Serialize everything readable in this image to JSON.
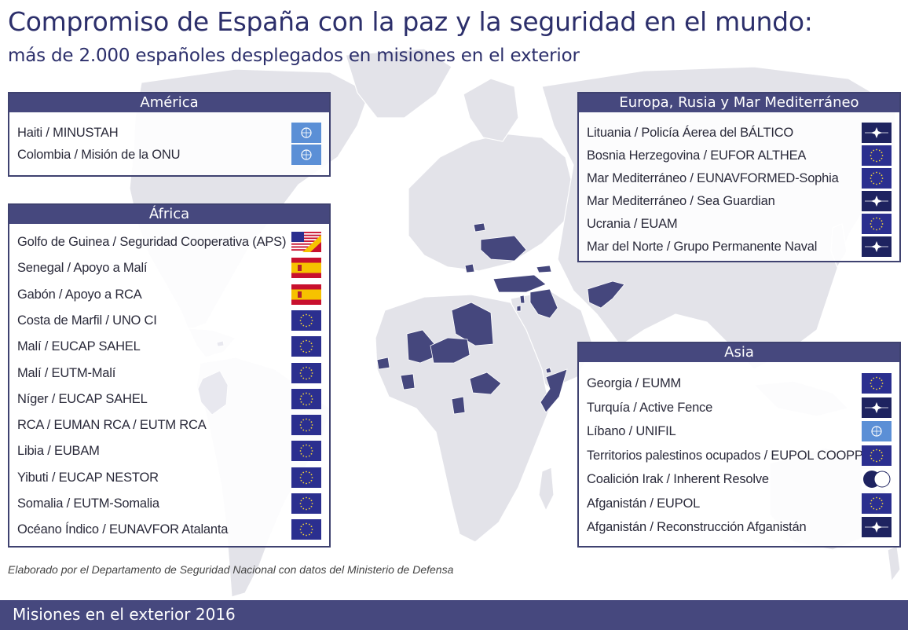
{
  "title": "Compromiso de España con la paz y la seguridad en el  mundo:",
  "subtitle": "más de 2.000 españoles desplegados en misiones en el exterior",
  "panels": {
    "america": {
      "heading": "América",
      "items": [
        {
          "label": "Haiti / MINUSTAH",
          "flag": "un"
        },
        {
          "label": "Colombia / Misión de la ONU",
          "flag": "un"
        }
      ]
    },
    "africa": {
      "heading": "África",
      "items": [
        {
          "label": "Golfo de Guinea / Seguridad Cooperativa (APS)",
          "flag": "us-es"
        },
        {
          "label": "Senegal / Apoyo a Malí",
          "flag": "es"
        },
        {
          "label": "Gabón / Apoyo a RCA",
          "flag": "es"
        },
        {
          "label": "Costa de Marfil / UNO CI",
          "flag": "eu"
        },
        {
          "label": "Malí / EUCAP SAHEL",
          "flag": "eu"
        },
        {
          "label": "Malí / EUTM-Malí",
          "flag": "eu"
        },
        {
          "label": "Níger / EUCAP SAHEL",
          "flag": "eu"
        },
        {
          "label": "RCA / EUMAN RCA / EUTM RCA",
          "flag": "eu"
        },
        {
          "label": "Libia / EUBAM",
          "flag": "eu"
        },
        {
          "label": "Yibuti / EUCAP  NESTOR",
          "flag": "eu"
        },
        {
          "label": "Somalia / EUTM-Somalia",
          "flag": "eu"
        },
        {
          "label": "Océano Índico / EUNAVFOR Atalanta",
          "flag": "eu"
        }
      ]
    },
    "europa": {
      "heading": "Europa, Rusia y Mar Mediterráneo",
      "items": [
        {
          "label": "Lituania / Policía Áerea del BÁLTICO",
          "flag": "nato"
        },
        {
          "label": "Bosnia Herzegovina / EUFOR ALTHEA",
          "flag": "eu"
        },
        {
          "label": "Mar Mediterráneo / EUNAVFORMED-Sophia",
          "flag": "eu"
        },
        {
          "label": "Mar Mediterráneo / Sea Guardian",
          "flag": "nato"
        },
        {
          "label": "Ucrania / EUAM",
          "flag": "eu"
        },
        {
          "label": "Mar del Norte / Grupo Permanente Naval",
          "flag": "nato"
        }
      ]
    },
    "asia": {
      "heading": "Asia",
      "items": [
        {
          "label": "Georgia / EUMM",
          "flag": "eu"
        },
        {
          "label": "Turquía / Active Fence",
          "flag": "nato"
        },
        {
          "label": "Líbano / UNIFIL",
          "flag": "un"
        },
        {
          "label": "Territorios palestinos ocupados / EUPOL COOPPS",
          "flag": "eu"
        },
        {
          "label": "Coalición Irak / Inherent Resolve",
          "flag": "coalition"
        },
        {
          "label": "Afganistán / EUPOL",
          "flag": "eu"
        },
        {
          "label": "Afganistán / Reconstrucción Afganistán",
          "flag": "nato"
        }
      ]
    }
  },
  "credit": "Elaborado por el Departamento de Seguridad Nacional con datos del Ministerio de Defensa",
  "footer": "Misiones en el exterior 2016",
  "colors": {
    "navy": "#46487e",
    "land": "#e4e4ea",
    "highlight": "#45477d",
    "eu_blue": "#2b2f8f",
    "un_blue": "#5b8fd6",
    "nato_blue": "#1e2360"
  }
}
